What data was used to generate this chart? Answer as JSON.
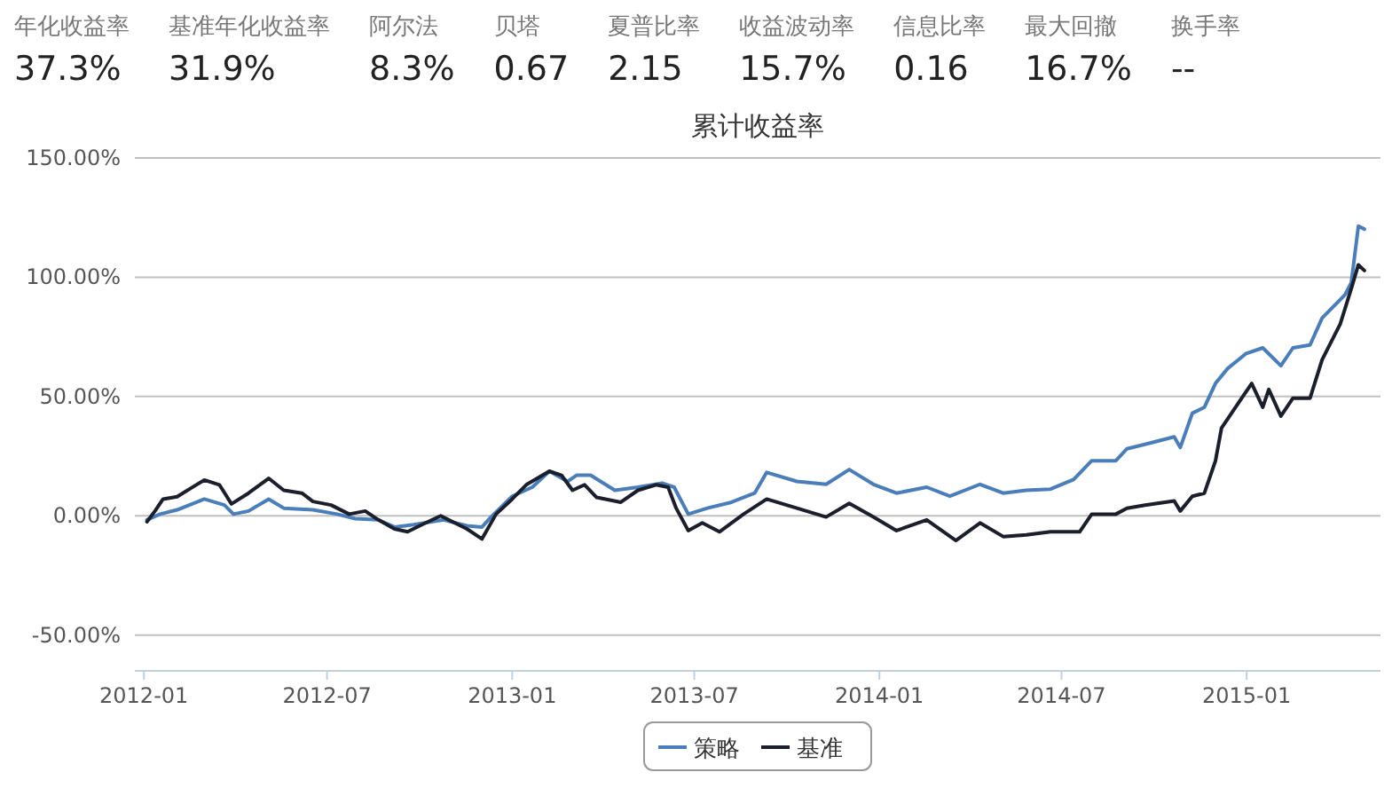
{
  "chart_data": [
    {
      "type": "other",
      "annotations": [
        "年化收益率",
        "37.3%",
        "基准年化收益率",
        "31.9%",
        "阿尔法",
        "8.3%",
        "贝塔",
        "0.67",
        "夏普比率",
        "2.15",
        "收益波动率",
        "15.7%",
        "信息比率",
        "0.16",
        "最大回撤",
        "16.7%",
        "换手率",
        "--"
      ]
    },
    {
      "type": "line",
      "title": "累计收益率",
      "legend": "bottom",
      "grid": "y",
      "marker": "none",
      "line_style": "solid",
      "xlim": [
        "2011-12-23",
        "2015-05-14"
      ],
      "xticks": [
        {
          "value": "2012-01-01",
          "label": "2012-01"
        },
        {
          "value": "2012-07-01",
          "label": "2012-07"
        },
        {
          "value": "2013-01-01",
          "label": "2013-01"
        },
        {
          "value": "2013-07-01",
          "label": "2013-07"
        },
        {
          "value": "2014-01-01",
          "label": "2014-01"
        },
        {
          "value": "2014-07-01",
          "label": "2014-07"
        },
        {
          "value": "2015-01-01",
          "label": "2015-01"
        }
      ],
      "ylim": [
        -65,
        150
      ],
      "yticks": [
        {
          "value": -50,
          "label": "-50.00%"
        },
        {
          "value": 0,
          "label": "0.00%"
        },
        {
          "value": 50,
          "label": "50.00%"
        },
        {
          "value": 100,
          "label": "100.00%"
        },
        {
          "value": 150,
          "label": "150.00%"
        }
      ],
      "series": [
        {
          "name": "策略",
          "color": "#4a7ebb",
          "x": [
            "2012-01-04",
            "2012-01-17",
            "2012-02-03",
            "2012-03-01",
            "2012-03-21",
            "2012-03-30",
            "2012-04-14",
            "2012-05-04",
            "2012-05-19",
            "2012-06-17",
            "2012-07-11",
            "2012-07-29",
            "2012-08-21",
            "2012-09-06",
            "2012-09-25",
            "2012-10-25",
            "2012-11-17",
            "2012-12-02",
            "2012-12-11",
            "2013-01-01",
            "2013-01-21",
            "2013-02-07",
            "2013-02-25",
            "2013-03-06",
            "2013-03-20",
            "2013-04-13",
            "2013-05-06",
            "2013-05-30",
            "2013-06-11",
            "2013-06-25",
            "2013-07-14",
            "2013-08-07",
            "2013-08-30",
            "2013-09-11",
            "2013-10-11",
            "2013-11-09",
            "2013-12-02",
            "2013-12-26",
            "2014-01-18",
            "2014-02-17",
            "2014-03-12",
            "2014-04-11",
            "2014-05-04",
            "2014-05-27",
            "2014-06-20",
            "2014-07-13",
            "2014-07-31",
            "2014-08-24",
            "2014-09-04",
            "2014-09-28",
            "2014-10-21",
            "2014-10-27",
            "2014-11-08",
            "2014-11-20",
            "2014-12-01",
            "2014-12-13",
            "2014-12-31",
            "2015-01-17",
            "2015-02-04",
            "2015-02-16",
            "2015-03-05",
            "2015-03-17",
            "2015-04-09",
            "2015-04-15",
            "2015-04-22",
            "2015-04-28"
          ],
          "values": [
            -1.7,
            0.7,
            2.5,
            7,
            4.5,
            0.7,
            2,
            7,
            3.2,
            2.5,
            0.7,
            -1.2,
            -1.7,
            -4.7,
            -3.7,
            -1.7,
            -4.2,
            -4.7,
            -0.5,
            8.2,
            12,
            18.7,
            14.4,
            17,
            17,
            10.7,
            12,
            13.7,
            12,
            0.7,
            3.2,
            5.7,
            9.5,
            18.2,
            14.4,
            13.2,
            19.4,
            13.2,
            9.5,
            12,
            8.2,
            13.2,
            9.5,
            10.7,
            11.2,
            15.2,
            23.1,
            23.1,
            28.1,
            30.6,
            33.1,
            28.6,
            43,
            45.5,
            55.5,
            61.7,
            67.9,
            70.4,
            62.9,
            70.4,
            71.6,
            82.9,
            92.8,
            97.8,
            121.4,
            120.2
          ]
        },
        {
          "name": "基准",
          "color": "#1a1f2b",
          "x": [
            "2012-01-04",
            "2012-01-12",
            "2012-01-20",
            "2012-02-03",
            "2012-02-21",
            "2012-03-01",
            "2012-03-16",
            "2012-03-28",
            "2012-04-14",
            "2012-05-04",
            "2012-05-19",
            "2012-06-06",
            "2012-06-17",
            "2012-07-05",
            "2012-07-23",
            "2012-08-08",
            "2012-08-21",
            "2012-09-06",
            "2012-09-19",
            "2012-10-07",
            "2012-10-22",
            "2012-11-05",
            "2012-11-17",
            "2012-12-02",
            "2012-12-16",
            "2013-01-01",
            "2013-01-15",
            "2013-02-07",
            "2013-02-19",
            "2013-03-02",
            "2013-03-14",
            "2013-03-26",
            "2013-04-19",
            "2013-05-06",
            "2013-05-24",
            "2013-06-05",
            "2013-06-13",
            "2013-06-25",
            "2013-07-09",
            "2013-07-26",
            "2013-08-19",
            "2013-09-11",
            "2013-10-11",
            "2013-11-09",
            "2013-12-02",
            "2013-12-26",
            "2014-01-18",
            "2014-02-17",
            "2014-03-18",
            "2014-04-11",
            "2014-05-04",
            "2014-05-27",
            "2014-06-20",
            "2014-07-19",
            "2014-07-31",
            "2014-08-24",
            "2014-09-04",
            "2014-09-22",
            "2014-10-21",
            "2014-10-27",
            "2014-11-08",
            "2014-11-20",
            "2014-12-01",
            "2014-12-07",
            "2014-12-25",
            "2015-01-06",
            "2015-01-17",
            "2015-01-23",
            "2015-02-04",
            "2015-02-16",
            "2015-03-05",
            "2015-03-17",
            "2015-04-04",
            "2015-04-15",
            "2015-04-22",
            "2015-04-28"
          ],
          "values": [
            -2.5,
            2,
            7,
            8,
            12.7,
            15,
            13,
            5,
            9.5,
            15.7,
            10.7,
            9.5,
            6,
            4.5,
            0.7,
            2,
            -1.7,
            -5.5,
            -6.7,
            -3,
            0,
            -3,
            -5.5,
            -9.7,
            0.7,
            7,
            13,
            18.7,
            17,
            10.7,
            13,
            7.7,
            5.7,
            10.7,
            13,
            12,
            3.2,
            -6.2,
            -3,
            -6.7,
            0.7,
            7,
            3.2,
            -0.5,
            5.2,
            -0.5,
            -6.2,
            -1.7,
            -10.4,
            -3,
            -8.7,
            -8,
            -6.7,
            -6.7,
            0.7,
            0.7,
            3.2,
            4.5,
            6.2,
            2,
            8.2,
            9.5,
            23,
            36.8,
            48,
            55.5,
            45.5,
            53,
            41.8,
            49.3,
            49.3,
            65.4,
            80.4,
            95.3,
            105.2,
            102.8
          ]
        }
      ]
    }
  ]
}
